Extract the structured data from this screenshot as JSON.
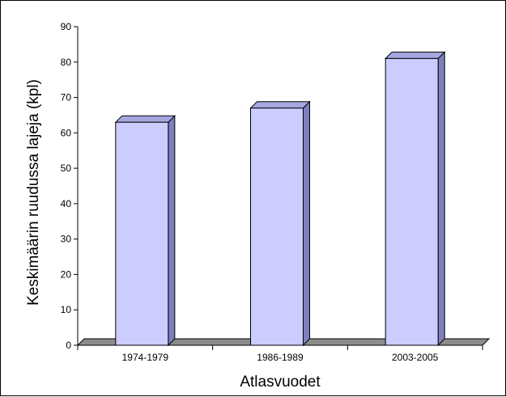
{
  "chart_data": {
    "type": "bar",
    "title": "",
    "xlabel": "Atlasvuodet",
    "ylabel": "Keskimäärin ruudussa lajeja (kpl)",
    "categories": [
      "1974-1979",
      "1986-1989",
      "2003-2005"
    ],
    "values": [
      63,
      67,
      81
    ],
    "ylim": [
      0,
      90
    ],
    "yticks": [
      "0",
      "10",
      "20",
      "30",
      "40",
      "50",
      "60",
      "70",
      "80",
      "90"
    ],
    "grid": false,
    "legend": "none",
    "style": "3d-column"
  },
  "colors": {
    "bar_front": "#ccccff",
    "bar_side": "#7f7fbf",
    "bar_top": "#a6a6e0",
    "floor": "#8c8c8c",
    "axis": "#000000"
  }
}
